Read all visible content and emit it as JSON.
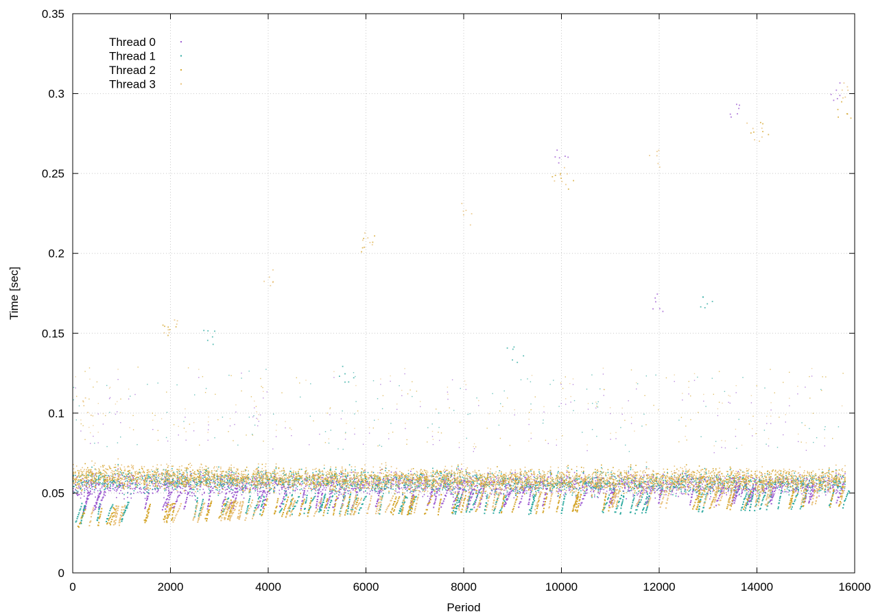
{
  "chart_data": {
    "type": "scatter",
    "xlabel": "Period",
    "ylabel": "Time [sec]",
    "xlim": [
      0,
      16000
    ],
    "ylim": [
      0,
      0.35
    ],
    "x_ticks": [
      "0",
      "2000",
      "4000",
      "6000",
      "8000",
      "10000",
      "12000",
      "14000",
      "16000"
    ],
    "y_ticks": [
      "0",
      "0.05",
      "0.1",
      "0.15",
      "0.2",
      "0.25",
      "0.3",
      "0.35"
    ],
    "grid": true,
    "legend_position": "top-left",
    "series": [
      {
        "name": "Thread 0",
        "color": "#9b59d0",
        "trend": [
          [
            0,
            0.055
          ],
          [
            4000,
            0.056
          ],
          [
            8000,
            0.056
          ],
          [
            12000,
            0.055
          ],
          [
            15800,
            0.055
          ]
        ],
        "lower_band": [
          [
            0,
            0.04
          ],
          [
            8000,
            0.042
          ],
          [
            15800,
            0.045
          ]
        ],
        "outliers": [
          [
            10000,
            0.262
          ],
          [
            12000,
            0.17
          ],
          [
            13500,
            0.29
          ],
          [
            15600,
            0.302
          ]
        ]
      },
      {
        "name": "Thread 1",
        "color": "#2eaaa0",
        "trend": [
          [
            0,
            0.058
          ],
          [
            4000,
            0.058
          ],
          [
            8000,
            0.057
          ],
          [
            12000,
            0.056
          ],
          [
            15800,
            0.057
          ]
        ],
        "lower_band": [
          [
            0,
            0.032
          ],
          [
            4000,
            0.038
          ],
          [
            8000,
            0.038
          ],
          [
            12000,
            0.038
          ],
          [
            15800,
            0.042
          ]
        ],
        "outliers": [
          [
            2800,
            0.148
          ],
          [
            5500,
            0.124
          ],
          [
            9000,
            0.14
          ],
          [
            12900,
            0.17
          ]
        ]
      },
      {
        "name": "Thread 2",
        "color": "#d4a52a",
        "trend": [
          [
            0,
            0.06
          ],
          [
            4000,
            0.059
          ],
          [
            8000,
            0.058
          ],
          [
            12000,
            0.058
          ],
          [
            15800,
            0.058
          ]
        ],
        "lower_band": [
          [
            0,
            0.029
          ],
          [
            2000,
            0.033
          ],
          [
            4000,
            0.036
          ],
          [
            8000,
            0.038
          ],
          [
            12000,
            0.04
          ],
          [
            15800,
            0.042
          ]
        ],
        "outliers": [
          [
            2000,
            0.155
          ],
          [
            6000,
            0.205
          ],
          [
            10000,
            0.247
          ],
          [
            14000,
            0.276
          ],
          [
            15800,
            0.286
          ]
        ]
      },
      {
        "name": "Thread 3",
        "color": "#e8c07a",
        "trend": [
          [
            0,
            0.062
          ],
          [
            4000,
            0.06
          ],
          [
            8000,
            0.059
          ],
          [
            12000,
            0.059
          ],
          [
            15800,
            0.06
          ]
        ],
        "lower_band": [
          [
            0,
            0.03
          ],
          [
            8000,
            0.04
          ],
          [
            15800,
            0.044
          ]
        ],
        "outliers": [
          [
            300,
            0.105
          ],
          [
            2000,
            0.155
          ],
          [
            4000,
            0.185
          ],
          [
            6000,
            0.21
          ],
          [
            8000,
            0.225
          ],
          [
            10000,
            0.25
          ],
          [
            12000,
            0.26
          ],
          [
            14000,
            0.276
          ],
          [
            15800,
            0.3
          ]
        ]
      }
    ]
  }
}
